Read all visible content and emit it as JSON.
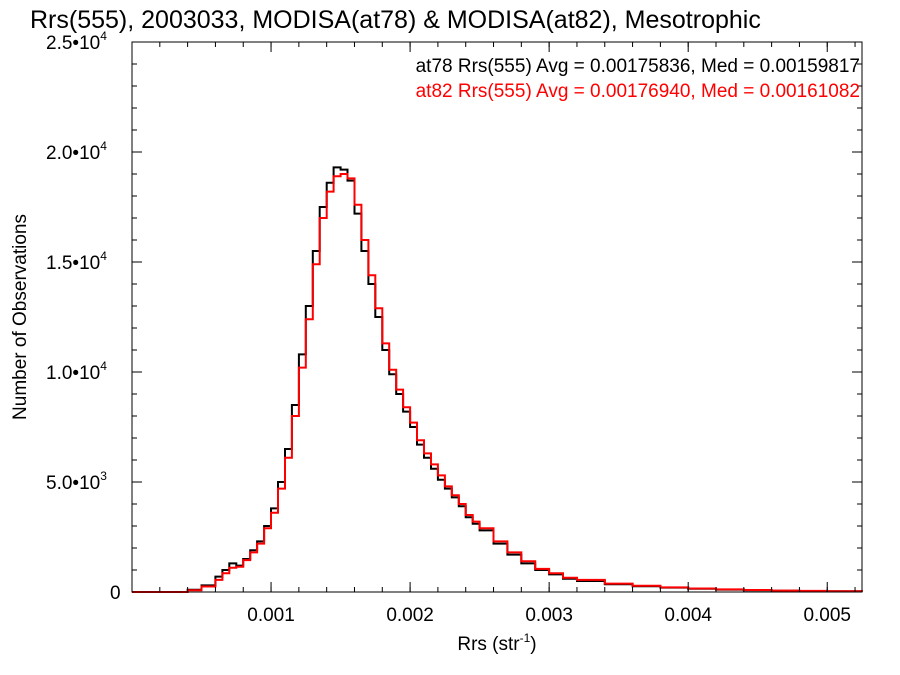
{
  "chart_data": {
    "type": "line",
    "step": true,
    "title": "Rrs(555), 2003033, MODISA(at78) & MODISA(at82), Mesotrophic",
    "xlabel_base": "Rrs (str",
    "xlabel_sup": "-1",
    "xlabel_end": ")",
    "ylabel": "Number of Observations",
    "xlim": [
      0.0,
      0.00525
    ],
    "ylim": [
      0,
      25000
    ],
    "xticks": [
      {
        "value": 0.001,
        "label": "0.001"
      },
      {
        "value": 0.002,
        "label": "0.002"
      },
      {
        "value": 0.003,
        "label": "0.003"
      },
      {
        "value": 0.004,
        "label": "0.004"
      },
      {
        "value": 0.005,
        "label": "0.005"
      }
    ],
    "yticks": [
      {
        "value": 0,
        "mantissa": "0",
        "exponent": ""
      },
      {
        "value": 5000,
        "mantissa": "5.0•10",
        "exponent": "3"
      },
      {
        "value": 10000,
        "mantissa": "1.0•10",
        "exponent": "4"
      },
      {
        "value": 15000,
        "mantissa": "1.5•10",
        "exponent": "4"
      },
      {
        "value": 20000,
        "mantissa": "2.0•10",
        "exponent": "4"
      },
      {
        "value": 25000,
        "mantissa": "2.5•10",
        "exponent": "4"
      }
    ],
    "grid": false,
    "legend_position": "top-right",
    "series": [
      {
        "name": "at78",
        "label": "at78 Rrs(555) Avg = 0.00175836, Med = 0.00159817",
        "color": "#000000",
        "points": [
          [
            0.0,
            0
          ],
          [
            0.0003,
            0
          ],
          [
            0.0004,
            100
          ],
          [
            0.0005,
            300
          ],
          [
            0.0006,
            700
          ],
          [
            0.00065,
            1000
          ],
          [
            0.0007,
            1300
          ],
          [
            0.00075,
            1200
          ],
          [
            0.0008,
            1500
          ],
          [
            0.00085,
            1900
          ],
          [
            0.0009,
            2300
          ],
          [
            0.00095,
            3000
          ],
          [
            0.001,
            3800
          ],
          [
            0.00105,
            5000
          ],
          [
            0.0011,
            6500
          ],
          [
            0.00115,
            8500
          ],
          [
            0.0012,
            10800
          ],
          [
            0.00125,
            13000
          ],
          [
            0.0013,
            15500
          ],
          [
            0.00135,
            17500
          ],
          [
            0.0014,
            18600
          ],
          [
            0.00145,
            19300
          ],
          [
            0.0015,
            19200
          ],
          [
            0.00155,
            18700
          ],
          [
            0.0016,
            17200
          ],
          [
            0.00165,
            15500
          ],
          [
            0.0017,
            14000
          ],
          [
            0.00175,
            12500
          ],
          [
            0.0018,
            11000
          ],
          [
            0.00185,
            9900
          ],
          [
            0.0019,
            9000
          ],
          [
            0.00195,
            8200
          ],
          [
            0.002,
            7500
          ],
          [
            0.00205,
            6700
          ],
          [
            0.0021,
            6100
          ],
          [
            0.00215,
            5600
          ],
          [
            0.0022,
            5100
          ],
          [
            0.00225,
            4700
          ],
          [
            0.0023,
            4300
          ],
          [
            0.00235,
            3900
          ],
          [
            0.0024,
            3400
          ],
          [
            0.00245,
            3100
          ],
          [
            0.0025,
            2800
          ],
          [
            0.0026,
            2200
          ],
          [
            0.0027,
            1700
          ],
          [
            0.0028,
            1300
          ],
          [
            0.0029,
            1000
          ],
          [
            0.003,
            800
          ],
          [
            0.0031,
            600
          ],
          [
            0.0032,
            500
          ],
          [
            0.0034,
            350
          ],
          [
            0.0036,
            260
          ],
          [
            0.0038,
            200
          ],
          [
            0.004,
            150
          ],
          [
            0.0042,
            110
          ],
          [
            0.0044,
            80
          ],
          [
            0.0046,
            60
          ],
          [
            0.0048,
            45
          ],
          [
            0.005,
            30
          ],
          [
            0.00525,
            20
          ]
        ]
      },
      {
        "name": "at82",
        "label": "at82 Rrs(555) Avg = 0.00176940, Med = 0.00161082",
        "color": "#ff0000",
        "points": [
          [
            0.0,
            0
          ],
          [
            0.0003,
            0
          ],
          [
            0.0004,
            80
          ],
          [
            0.0005,
            250
          ],
          [
            0.0006,
            550
          ],
          [
            0.00065,
            850
          ],
          [
            0.0007,
            1100
          ],
          [
            0.00075,
            1150
          ],
          [
            0.0008,
            1450
          ],
          [
            0.00085,
            1800
          ],
          [
            0.0009,
            2200
          ],
          [
            0.00095,
            2900
          ],
          [
            0.001,
            3600
          ],
          [
            0.00105,
            4700
          ],
          [
            0.0011,
            6100
          ],
          [
            0.00115,
            8000
          ],
          [
            0.0012,
            10200
          ],
          [
            0.00125,
            12400
          ],
          [
            0.0013,
            14900
          ],
          [
            0.00135,
            17000
          ],
          [
            0.0014,
            18200
          ],
          [
            0.00145,
            18900
          ],
          [
            0.0015,
            19000
          ],
          [
            0.00155,
            18800
          ],
          [
            0.0016,
            17600
          ],
          [
            0.00165,
            16000
          ],
          [
            0.0017,
            14400
          ],
          [
            0.00175,
            12900
          ],
          [
            0.0018,
            11300
          ],
          [
            0.00185,
            10100
          ],
          [
            0.0019,
            9200
          ],
          [
            0.00195,
            8400
          ],
          [
            0.002,
            7700
          ],
          [
            0.00205,
            6900
          ],
          [
            0.0021,
            6300
          ],
          [
            0.00215,
            5800
          ],
          [
            0.0022,
            5300
          ],
          [
            0.00225,
            4800
          ],
          [
            0.0023,
            4400
          ],
          [
            0.00235,
            4000
          ],
          [
            0.0024,
            3500
          ],
          [
            0.00245,
            3200
          ],
          [
            0.0025,
            2900
          ],
          [
            0.0026,
            2300
          ],
          [
            0.0027,
            1800
          ],
          [
            0.0028,
            1400
          ],
          [
            0.0029,
            1050
          ],
          [
            0.003,
            850
          ],
          [
            0.0031,
            650
          ],
          [
            0.0032,
            550
          ],
          [
            0.0034,
            380
          ],
          [
            0.0036,
            280
          ],
          [
            0.0038,
            210
          ],
          [
            0.004,
            160
          ],
          [
            0.0042,
            120
          ],
          [
            0.0044,
            90
          ],
          [
            0.0046,
            65
          ],
          [
            0.0048,
            50
          ],
          [
            0.005,
            35
          ],
          [
            0.00525,
            25
          ]
        ]
      }
    ]
  }
}
